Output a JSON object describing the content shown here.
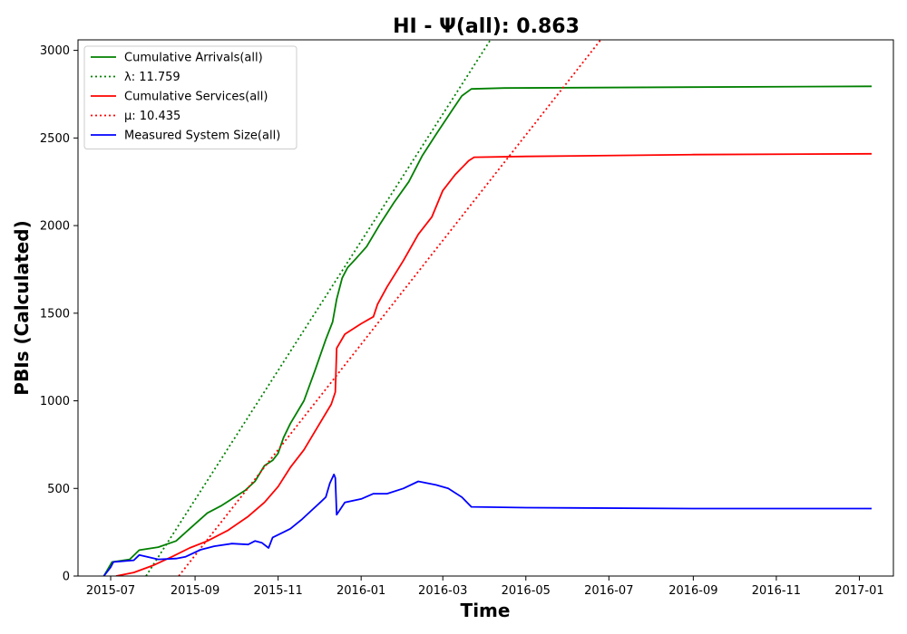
{
  "chart_data": {
    "type": "line",
    "title": "HI -  Ψ(all): 0.863",
    "xlabel": "Time",
    "ylabel": "PBIs (Calculated)",
    "xlim": [
      "2015-06-07",
      "2017-01-26"
    ],
    "ylim": [
      0,
      3060
    ],
    "x_ticks": [
      "2015-07",
      "2015-09",
      "2015-11",
      "2016-01",
      "2016-03",
      "2016-05",
      "2016-07",
      "2016-09",
      "2016-11",
      "2017-01"
    ],
    "y_ticks": [
      0,
      500,
      1000,
      1500,
      2000,
      2500,
      3000
    ],
    "grid": false,
    "legend_position": "top-left",
    "series": [
      {
        "name": "Cumulative Arrivals(all)",
        "color": "#008000",
        "style": "solid",
        "points": [
          [
            "2015-06-26",
            0
          ],
          [
            "2015-07-02",
            80
          ],
          [
            "2015-07-15",
            95
          ],
          [
            "2015-07-22",
            148
          ],
          [
            "2015-08-05",
            165
          ],
          [
            "2015-08-18",
            200
          ],
          [
            "2015-08-28",
            270
          ],
          [
            "2015-09-10",
            360
          ],
          [
            "2015-09-20",
            400
          ],
          [
            "2015-09-28",
            440
          ],
          [
            "2015-10-08",
            490
          ],
          [
            "2015-10-15",
            540
          ],
          [
            "2015-10-22",
            630
          ],
          [
            "2015-10-28",
            660
          ],
          [
            "2015-11-01",
            700
          ],
          [
            "2015-11-05",
            790
          ],
          [
            "2015-11-10",
            870
          ],
          [
            "2015-11-20",
            1000
          ],
          [
            "2015-11-28",
            1170
          ],
          [
            "2015-12-06",
            1350
          ],
          [
            "2015-12-11",
            1450
          ],
          [
            "2015-12-14",
            1580
          ],
          [
            "2015-12-18",
            1700
          ],
          [
            "2015-12-22",
            1760
          ],
          [
            "2015-12-28",
            1810
          ],
          [
            "2016-01-05",
            1880
          ],
          [
            "2016-01-15",
            2010
          ],
          [
            "2016-01-25",
            2130
          ],
          [
            "2016-02-05",
            2250
          ],
          [
            "2016-02-15",
            2400
          ],
          [
            "2016-02-25",
            2520
          ],
          [
            "2016-03-08",
            2660
          ],
          [
            "2016-03-15",
            2740
          ],
          [
            "2016-03-22",
            2780
          ],
          [
            "2016-04-15",
            2785
          ],
          [
            "2016-09-01",
            2790
          ],
          [
            "2017-01-10",
            2795
          ]
        ]
      },
      {
        "name": "λ: 11.759",
        "color": "#008000",
        "style": "dotted",
        "points": [
          [
            "2015-07-27",
            0
          ],
          [
            "2016-04-05",
            3060
          ]
        ]
      },
      {
        "name": "Cumulative Services(all)",
        "color": "#ff0000",
        "style": "solid",
        "points": [
          [
            "2015-07-05",
            0
          ],
          [
            "2015-07-18",
            20
          ],
          [
            "2015-08-01",
            60
          ],
          [
            "2015-08-15",
            110
          ],
          [
            "2015-08-28",
            160
          ],
          [
            "2015-09-10",
            200
          ],
          [
            "2015-09-25",
            260
          ],
          [
            "2015-10-10",
            340
          ],
          [
            "2015-10-22",
            420
          ],
          [
            "2015-11-01",
            510
          ],
          [
            "2015-11-10",
            620
          ],
          [
            "2015-11-20",
            720
          ],
          [
            "2015-11-30",
            850
          ],
          [
            "2015-12-10",
            980
          ],
          [
            "2015-12-13",
            1050
          ],
          [
            "2015-12-14",
            1300
          ],
          [
            "2015-12-20",
            1380
          ],
          [
            "2016-01-01",
            1440
          ],
          [
            "2016-01-10",
            1480
          ],
          [
            "2016-01-13",
            1550
          ],
          [
            "2016-01-20",
            1650
          ],
          [
            "2016-02-01",
            1800
          ],
          [
            "2016-02-12",
            1950
          ],
          [
            "2016-02-22",
            2050
          ],
          [
            "2016-03-01",
            2200
          ],
          [
            "2016-03-10",
            2290
          ],
          [
            "2016-03-20",
            2370
          ],
          [
            "2016-03-24",
            2390
          ],
          [
            "2016-05-01",
            2395
          ],
          [
            "2016-09-01",
            2405
          ],
          [
            "2017-01-10",
            2410
          ]
        ]
      },
      {
        "name": "μ: 10.435",
        "color": "#ff0000",
        "style": "dotted",
        "points": [
          [
            "2015-08-20",
            0
          ],
          [
            "2016-06-25",
            3060
          ]
        ]
      },
      {
        "name": "Measured System Size(all)",
        "color": "#0000ff",
        "style": "solid",
        "points": [
          [
            "2015-06-26",
            0
          ],
          [
            "2015-07-01",
            50
          ],
          [
            "2015-07-03",
            80
          ],
          [
            "2015-07-18",
            90
          ],
          [
            "2015-07-22",
            120
          ],
          [
            "2015-08-05",
            95
          ],
          [
            "2015-08-18",
            100
          ],
          [
            "2015-08-25",
            110
          ],
          [
            "2015-09-05",
            150
          ],
          [
            "2015-09-15",
            170
          ],
          [
            "2015-09-28",
            185
          ],
          [
            "2015-10-10",
            180
          ],
          [
            "2015-10-15",
            200
          ],
          [
            "2015-10-20",
            190
          ],
          [
            "2015-10-25",
            160
          ],
          [
            "2015-10-28",
            220
          ],
          [
            "2015-11-05",
            250
          ],
          [
            "2015-11-10",
            270
          ],
          [
            "2015-11-18",
            320
          ],
          [
            "2015-11-25",
            370
          ],
          [
            "2015-12-02",
            420
          ],
          [
            "2015-12-06",
            450
          ],
          [
            "2015-12-09",
            530
          ],
          [
            "2015-12-12",
            580
          ],
          [
            "2015-12-13",
            560
          ],
          [
            "2015-12-14",
            350
          ],
          [
            "2015-12-20",
            420
          ],
          [
            "2016-01-01",
            440
          ],
          [
            "2016-01-10",
            470
          ],
          [
            "2016-01-20",
            470
          ],
          [
            "2016-02-01",
            500
          ],
          [
            "2016-02-12",
            540
          ],
          [
            "2016-02-25",
            520
          ],
          [
            "2016-03-05",
            500
          ],
          [
            "2016-03-15",
            450
          ],
          [
            "2016-03-22",
            395
          ],
          [
            "2016-05-01",
            390
          ],
          [
            "2016-09-01",
            385
          ],
          [
            "2017-01-10",
            385
          ]
        ]
      }
    ]
  }
}
